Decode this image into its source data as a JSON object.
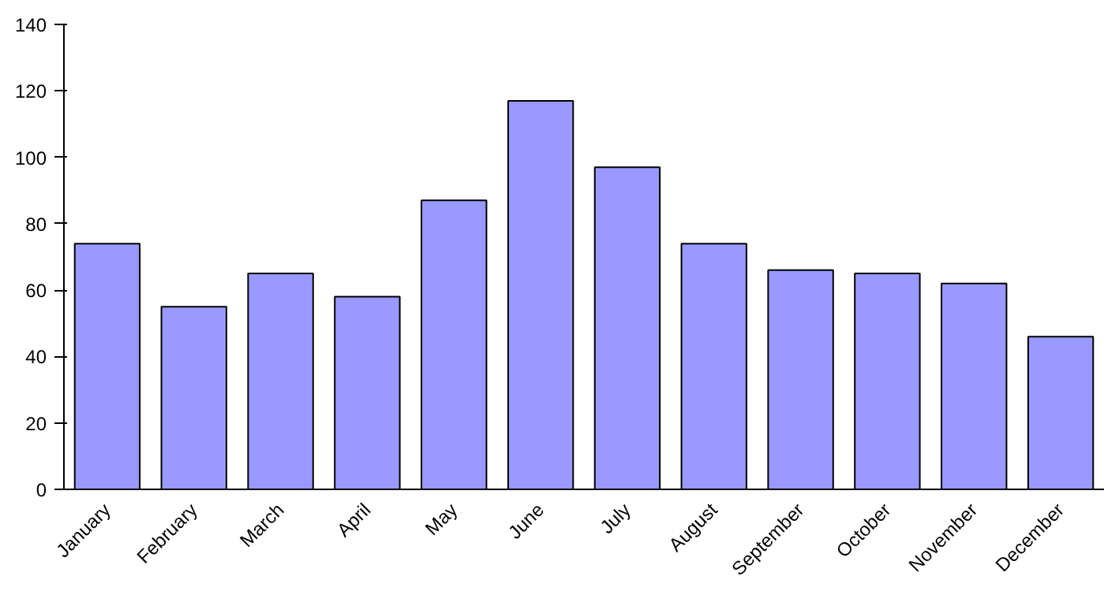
{
  "chart_data": {
    "type": "bar",
    "categories": [
      "January",
      "February",
      "March",
      "April",
      "May",
      "June",
      "July",
      "August",
      "September",
      "October",
      "November",
      "December"
    ],
    "values": [
      74,
      55,
      65,
      58,
      87,
      117,
      97,
      74,
      66,
      65,
      62,
      46
    ],
    "color": "#9999ff",
    "ylim": [
      0,
      140
    ],
    "yticks": [
      0,
      20,
      40,
      60,
      80,
      100,
      120,
      140
    ],
    "grid": false
  }
}
